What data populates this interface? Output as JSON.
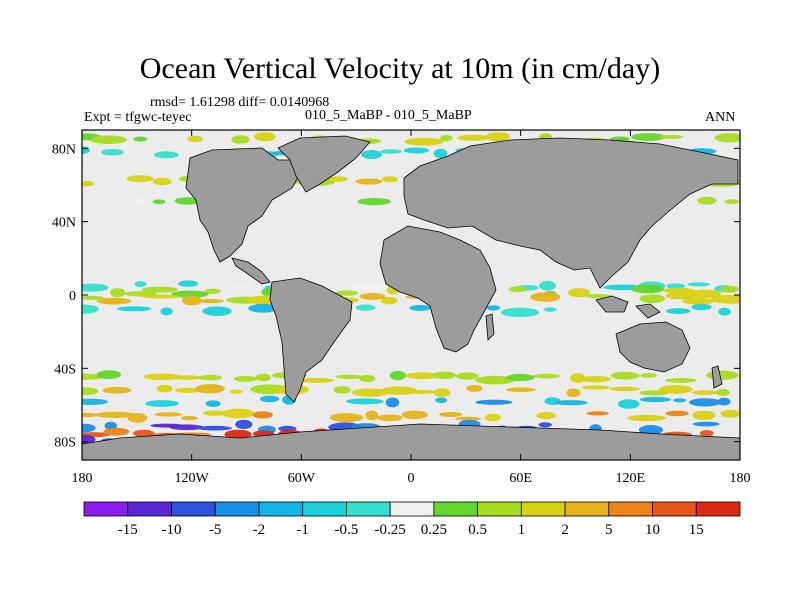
{
  "title": "Ocean Vertical Velocity at 10m (in cm/day)",
  "stats": "rmsd= 1.61298 diff= 0.0140968",
  "expt": "Expt = tfgwc-teyec",
  "case_label": "010_5_MaBP - 010_5_MaBP",
  "season": "ANN",
  "chart_data": {
    "type": "heatmap",
    "title": "Ocean Vertical Velocity at 10m (in cm/day)",
    "units": "cm/day",
    "x_axis": {
      "ticks": [
        {
          "lon": -180,
          "label": "180"
        },
        {
          "lon": -120,
          "label": "120W"
        },
        {
          "lon": -60,
          "label": "60W"
        },
        {
          "lon": 0,
          "label": "0"
        },
        {
          "lon": 60,
          "label": "60E"
        },
        {
          "lon": 120,
          "label": "120E"
        },
        {
          "lon": 180,
          "label": "180"
        }
      ],
      "range": [
        -180,
        180
      ]
    },
    "y_axis": {
      "ticks": [
        {
          "lat": 80,
          "label": "80N"
        },
        {
          "lat": 40,
          "label": "40N"
        },
        {
          "lat": 0,
          "label": "0"
        },
        {
          "lat": -40,
          "label": "40S"
        },
        {
          "lat": -80,
          "label": "80S"
        }
      ],
      "range": [
        -90,
        90
      ]
    },
    "colorbar": {
      "labels": [
        "-15",
        "-10",
        "-5",
        "-2",
        "-1",
        "-0.5",
        "-0.25",
        "0.25",
        "0.5",
        "1",
        "2",
        "5",
        "10",
        "15"
      ],
      "colors": [
        "#8c1cee",
        "#5a27d8",
        "#2d52e0",
        "#1a8fe8",
        "#14b6e6",
        "#1ad2dc",
        "#35e0cf",
        "#f0f0f0",
        "#62d62a",
        "#a6dd1e",
        "#d8d213",
        "#e6b41a",
        "#ec8417",
        "#e8561a",
        "#dc2a14"
      ]
    },
    "land_color": "#9c9c9c",
    "ocean_neutral_color": "#ececec"
  }
}
